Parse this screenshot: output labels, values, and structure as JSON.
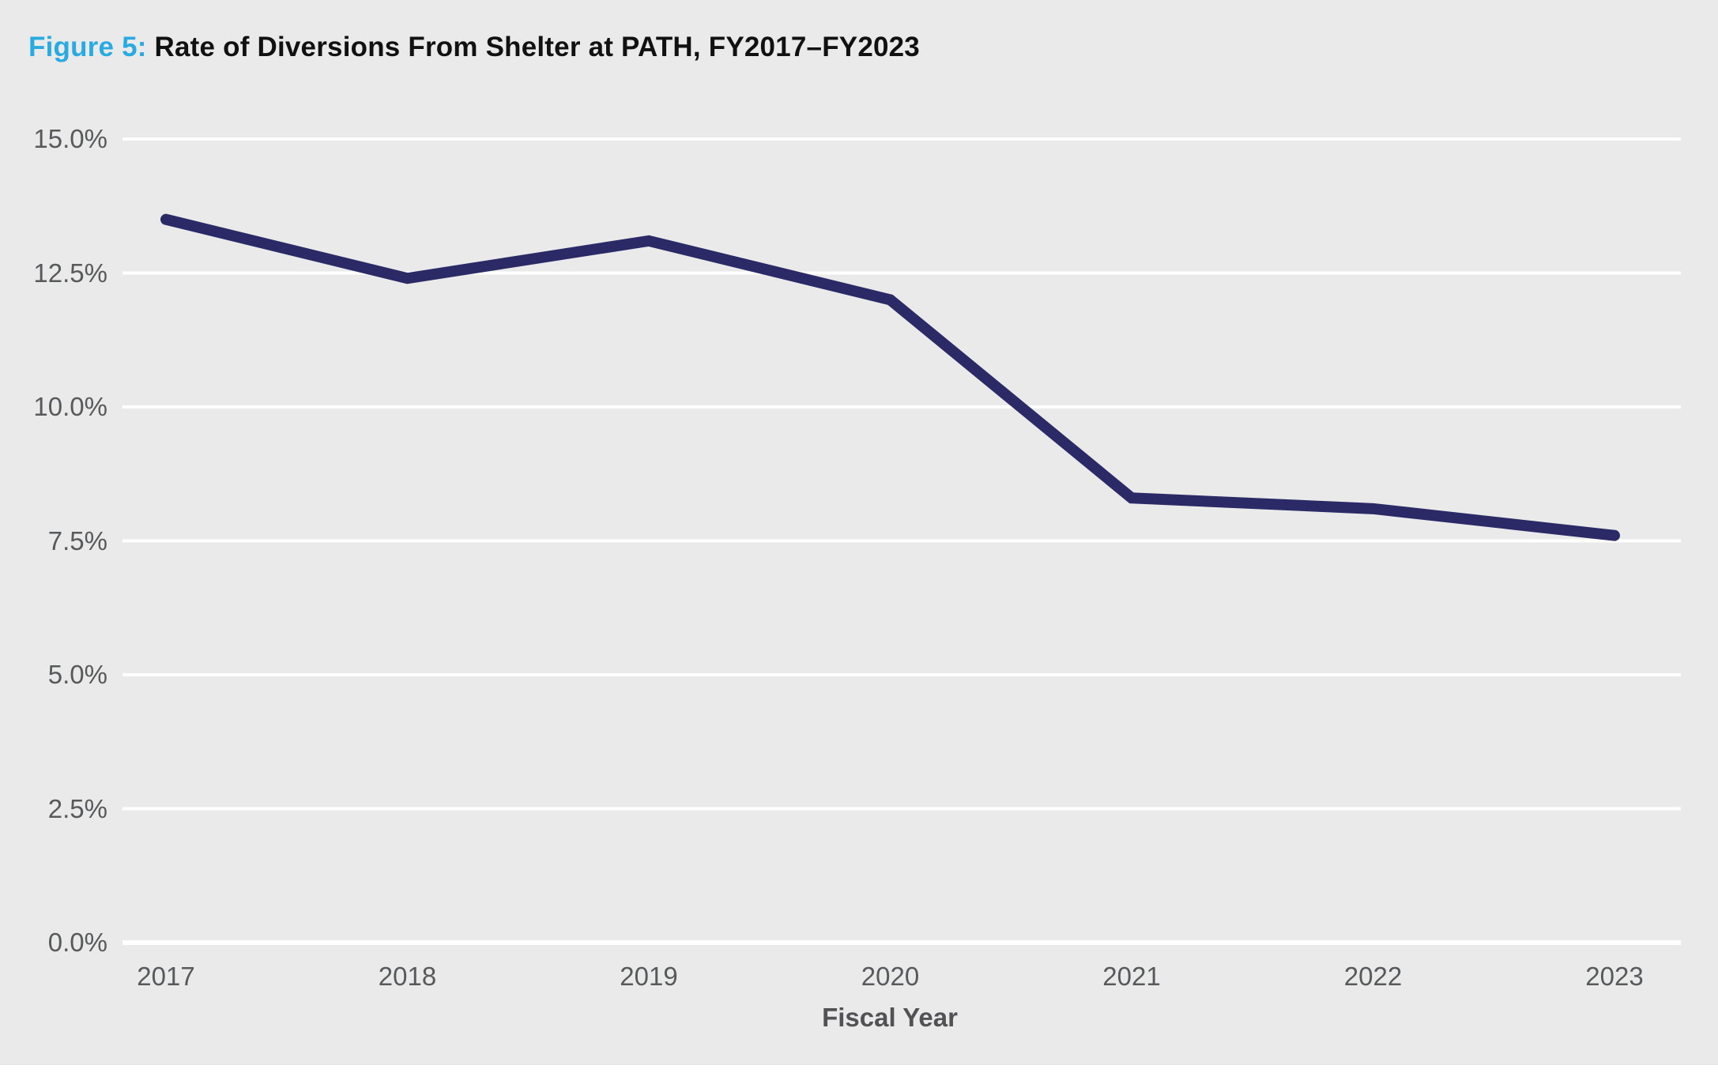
{
  "header": {
    "figure_label": "Figure 5:",
    "title": "Rate of Diversions From Shelter at PATH, FY2017–FY2023"
  },
  "colors": {
    "background": "#EAEAEA",
    "gridline": "#FFFFFF",
    "line": "#2B2A66",
    "figure_label": "#29ABE2",
    "title_text": "#111111",
    "tick_label": "#58595B",
    "axis_title": "#525254",
    "footer_strip": "#FFFFFF"
  },
  "chart_data": {
    "type": "line",
    "title": "Figure 5: Rate of Diversions From Shelter at PATH, FY2017–FY2023",
    "xlabel": "Fiscal Year",
    "ylabel": "",
    "unit": "percent",
    "categories": [
      "2017",
      "2018",
      "2019",
      "2020",
      "2021",
      "2022",
      "2023"
    ],
    "values": [
      13.5,
      12.4,
      13.1,
      12.0,
      8.3,
      8.1,
      7.6
    ],
    "y_tick_labels": [
      "15.0%",
      "12.5%",
      "10.0%",
      "7.5%",
      "5.0%",
      "2.5%",
      "0.0%"
    ],
    "y_tick_values": [
      15.0,
      12.5,
      10.0,
      7.5,
      5.0,
      2.5,
      0.0
    ],
    "ylim": [
      0,
      15
    ],
    "grid": "horizontal-white-gridlines",
    "legend": "none"
  }
}
